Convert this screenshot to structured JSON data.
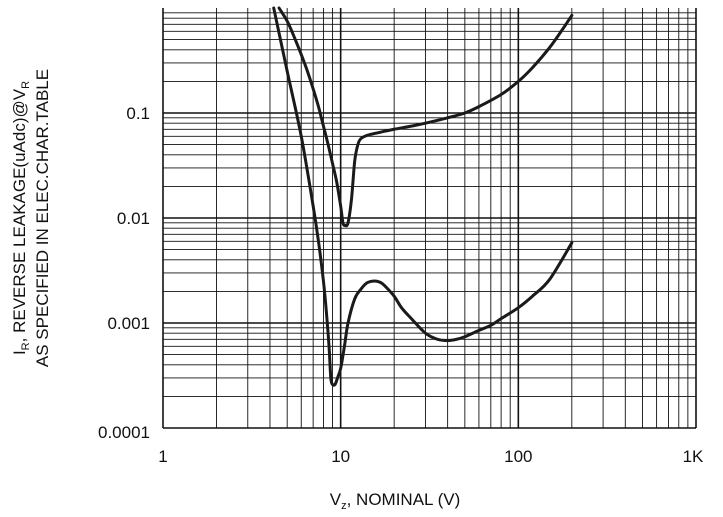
{
  "chart_data": {
    "type": "line",
    "x_scale": "log",
    "y_scale": "log",
    "xlim": [
      1,
      1000
    ],
    "ylim": [
      0.0001,
      1
    ],
    "grid": true,
    "legend": "none",
    "line_color": "#1a1a1a",
    "grid_color": "#111111",
    "x_ticks": [
      {
        "value": 1,
        "label": "1"
      },
      {
        "value": 10,
        "label": "10"
      },
      {
        "value": 100,
        "label": "100"
      },
      {
        "value": 1000,
        "label": "1K"
      }
    ],
    "y_ticks": [
      {
        "value": 0.1,
        "label": "0.1"
      },
      {
        "value": 0.01,
        "label": "0.01"
      },
      {
        "value": 0.001,
        "label": "0.001"
      },
      {
        "value": 0.0001,
        "label": "0.0001"
      }
    ],
    "xlabel": {
      "main": "V",
      "sub": "z",
      "rest": ", NOMINAL (V)"
    },
    "ylabel": {
      "line1_prefix": "I",
      "line1_sub": "R",
      "line1_mid": ", REVERSE LEAKAGE(uAdc)@V",
      "line1_sub2": "R",
      "line2": "AS SPECIFIED IN ELEC.CHAR.TABLE"
    },
    "series": [
      {
        "x": [
          4.5,
          5,
          5.5,
          6,
          6.5,
          7,
          7.5,
          8,
          8.5,
          9,
          9.5,
          10,
          10.3,
          10.6,
          11,
          11.5,
          12,
          12.5,
          13,
          14,
          15,
          17,
          20,
          25,
          30,
          40,
          50,
          60,
          80,
          100,
          120,
          150,
          180,
          200
        ],
        "y": [
          1,
          0.75,
          0.52,
          0.36,
          0.25,
          0.17,
          0.115,
          0.075,
          0.05,
          0.033,
          0.022,
          0.013,
          0.009,
          0.0085,
          0.009,
          0.015,
          0.035,
          0.05,
          0.057,
          0.061,
          0.063,
          0.066,
          0.07,
          0.075,
          0.08,
          0.09,
          0.1,
          0.115,
          0.15,
          0.2,
          0.27,
          0.42,
          0.65,
          0.85
        ]
      },
      {
        "x": [
          4.2,
          5,
          6,
          7,
          7.5,
          8,
          8.3,
          8.6,
          8.8,
          9,
          9.3,
          9.6,
          10,
          10.5,
          11,
          12,
          13,
          14,
          15,
          16,
          17,
          18,
          20,
          22,
          25,
          30,
          35,
          40,
          45,
          50,
          60,
          70,
          80,
          100,
          120,
          150,
          200
        ],
        "y": [
          1,
          0.25,
          0.06,
          0.013,
          0.006,
          0.0025,
          0.0013,
          0.0006,
          0.0003,
          0.00026,
          0.00026,
          0.0003,
          0.00037,
          0.0006,
          0.001,
          0.0017,
          0.0021,
          0.0024,
          0.0025,
          0.0025,
          0.0024,
          0.0022,
          0.0018,
          0.0014,
          0.0011,
          0.0008,
          0.0007,
          0.00068,
          0.0007,
          0.00074,
          0.00085,
          0.00095,
          0.0011,
          0.0014,
          0.0018,
          0.0026,
          0.0058
        ]
      }
    ]
  }
}
